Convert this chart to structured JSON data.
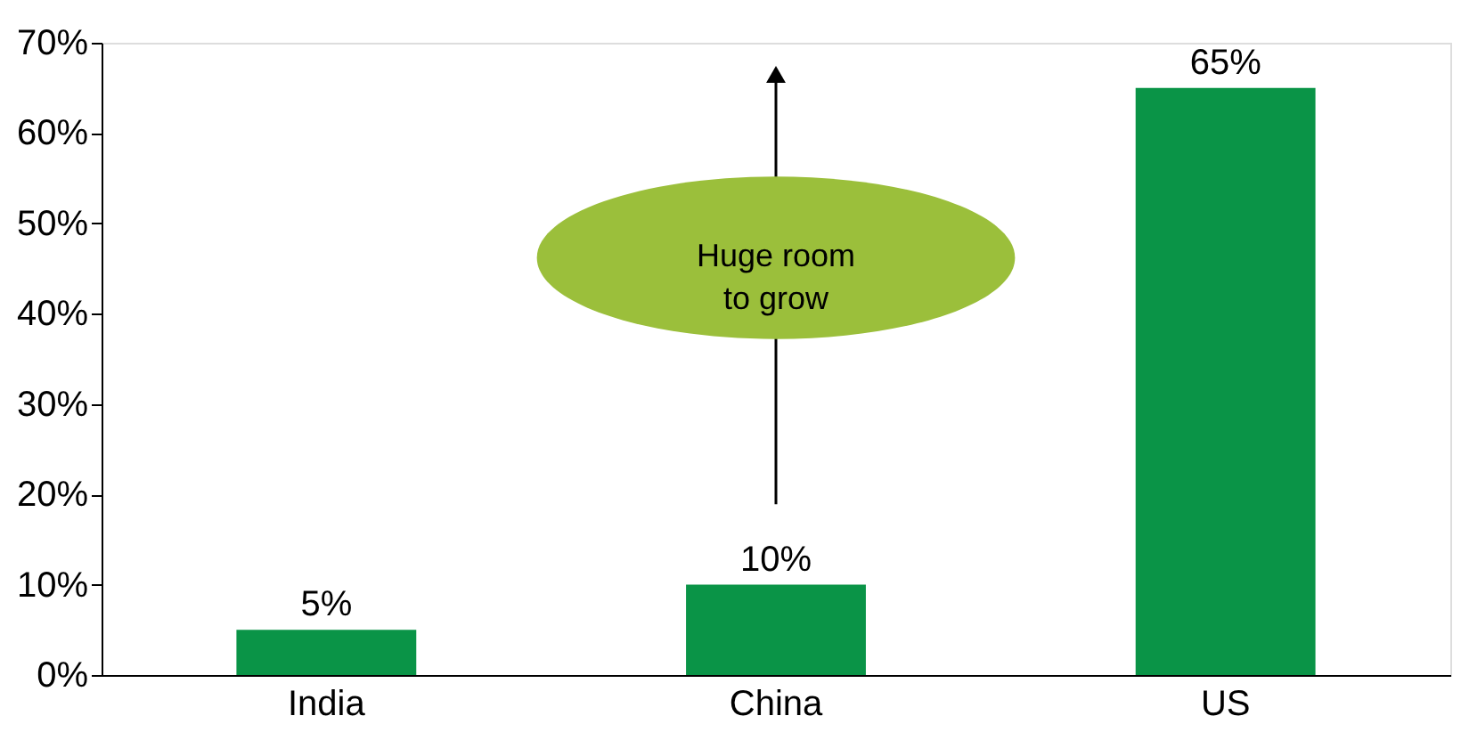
{
  "chart_data": {
    "type": "bar",
    "categories": [
      "India",
      "China",
      "US"
    ],
    "values": [
      5,
      10,
      65
    ],
    "color": "#0a9447",
    "value_labels": [
      "5%",
      "10%",
      "65%"
    ],
    "ylim": [
      0,
      70
    ],
    "yticks": [
      {
        "value": 0,
        "label": "0%"
      },
      {
        "value": 10,
        "label": "10%"
      },
      {
        "value": 20,
        "label": "20%"
      },
      {
        "value": 30,
        "label": "30%"
      },
      {
        "value": 40,
        "label": "40%"
      },
      {
        "value": 50,
        "label": "50%"
      },
      {
        "value": 60,
        "label": "60%"
      },
      {
        "value": 70,
        "label": "70%"
      }
    ],
    "annotations": [
      "Huge room\nto grow"
    ],
    "grid": false
  }
}
